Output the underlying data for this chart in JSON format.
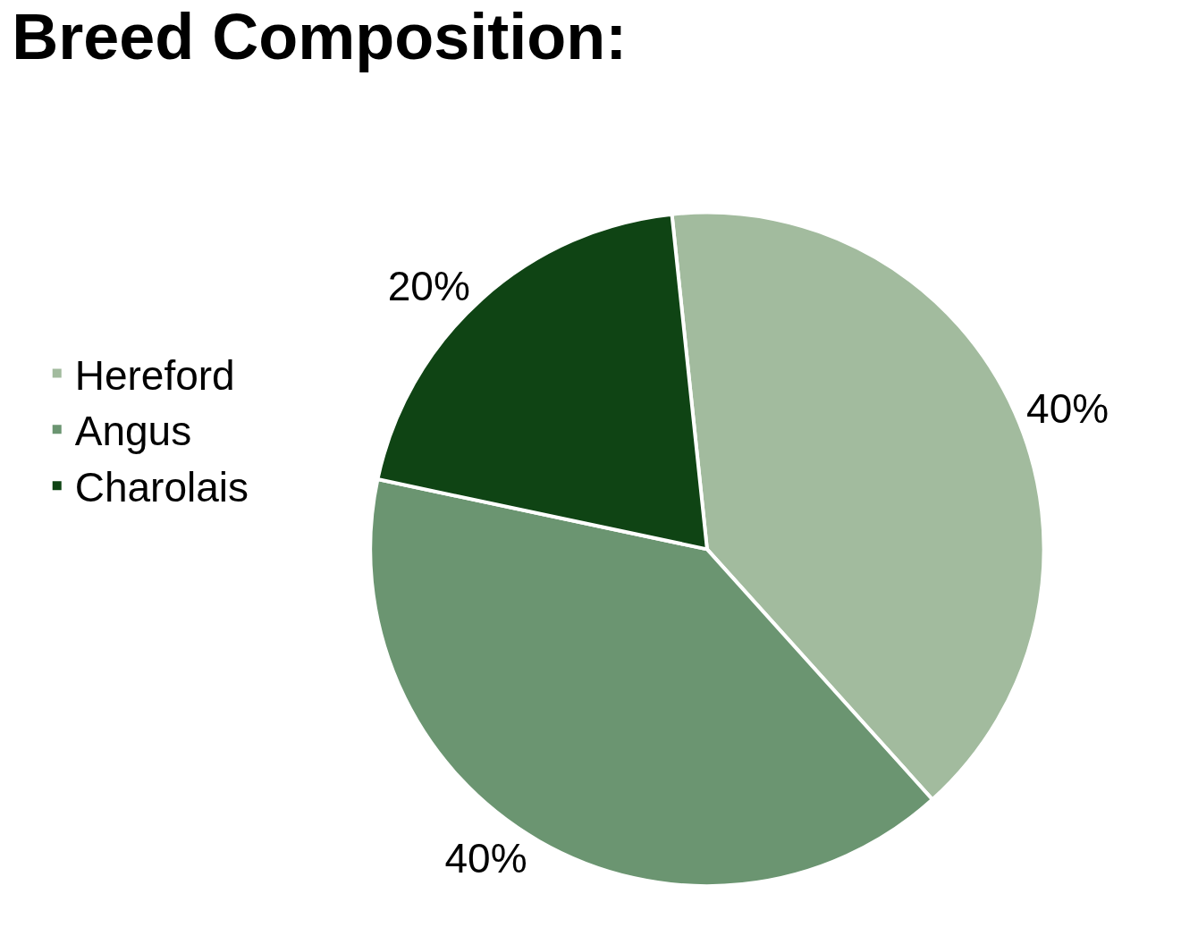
{
  "chart_data": {
    "type": "pie",
    "title": "Breed Composition:",
    "categories": [
      "Hereford",
      "Angus",
      "Charolais"
    ],
    "values": [
      40,
      40,
      20
    ],
    "colors": [
      "#a2bb9e",
      "#6b9571",
      "#0f4414"
    ],
    "value_labels": [
      "40%",
      "40%",
      "20%"
    ],
    "legend": "left"
  }
}
